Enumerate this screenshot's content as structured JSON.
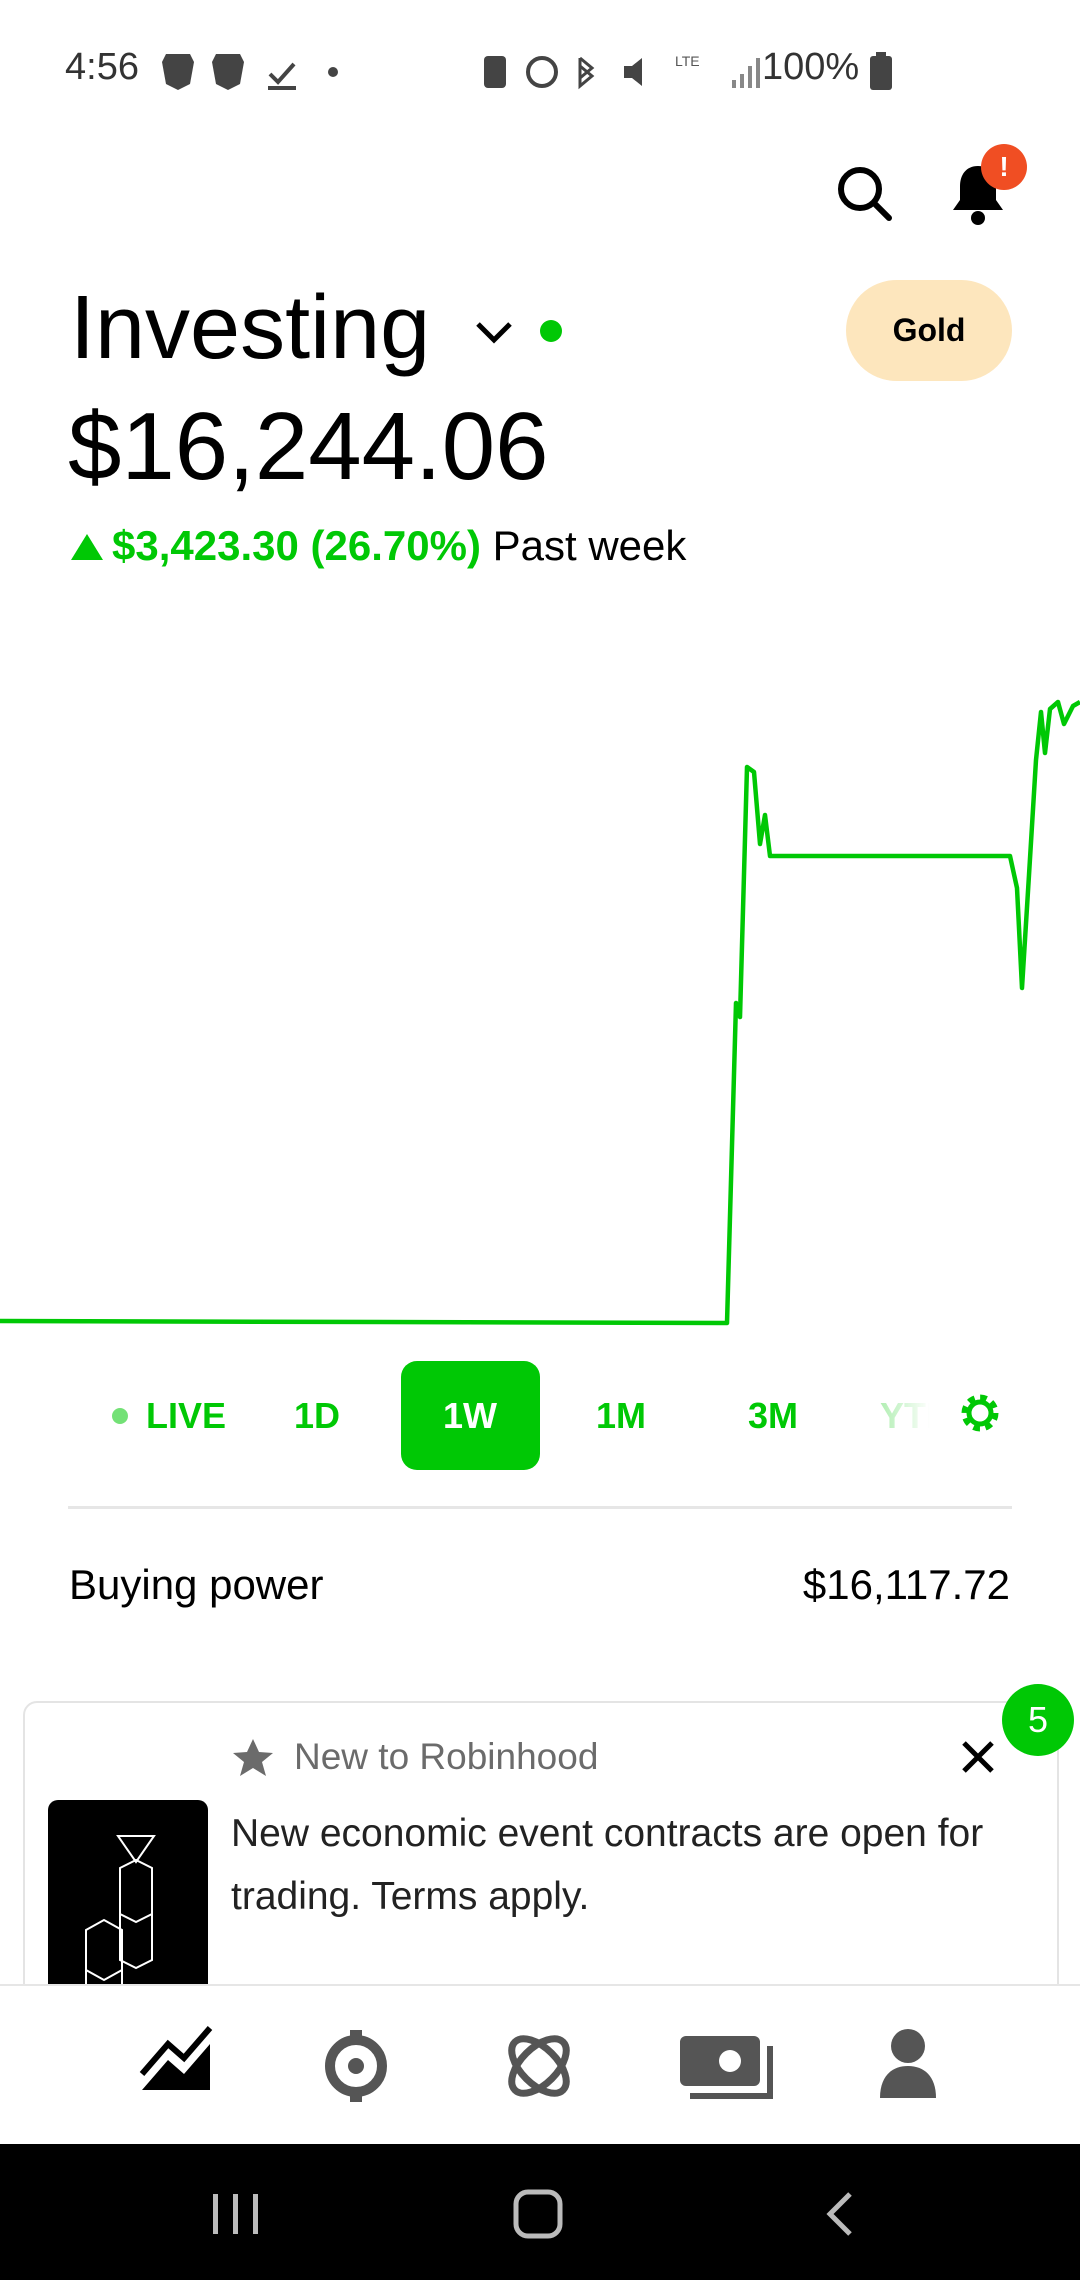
{
  "status_bar": {
    "time": "4:56",
    "battery": "100%"
  },
  "header": {
    "notification_badge": "!",
    "title": "Investing",
    "membership": "Gold"
  },
  "portfolio": {
    "value": "$16,244.06",
    "change": "$3,423.30 (26.70%)",
    "period": "Past week"
  },
  "ranges": [
    "LIVE",
    "1D",
    "1W",
    "1M",
    "3M",
    "YTD"
  ],
  "buying_power": {
    "label": "Buying power",
    "value": "$16,117.72"
  },
  "card": {
    "badge": "5",
    "eyebrow": "New to Robinhood",
    "body": "New economic event contracts are open for trading. Terms apply."
  }
}
